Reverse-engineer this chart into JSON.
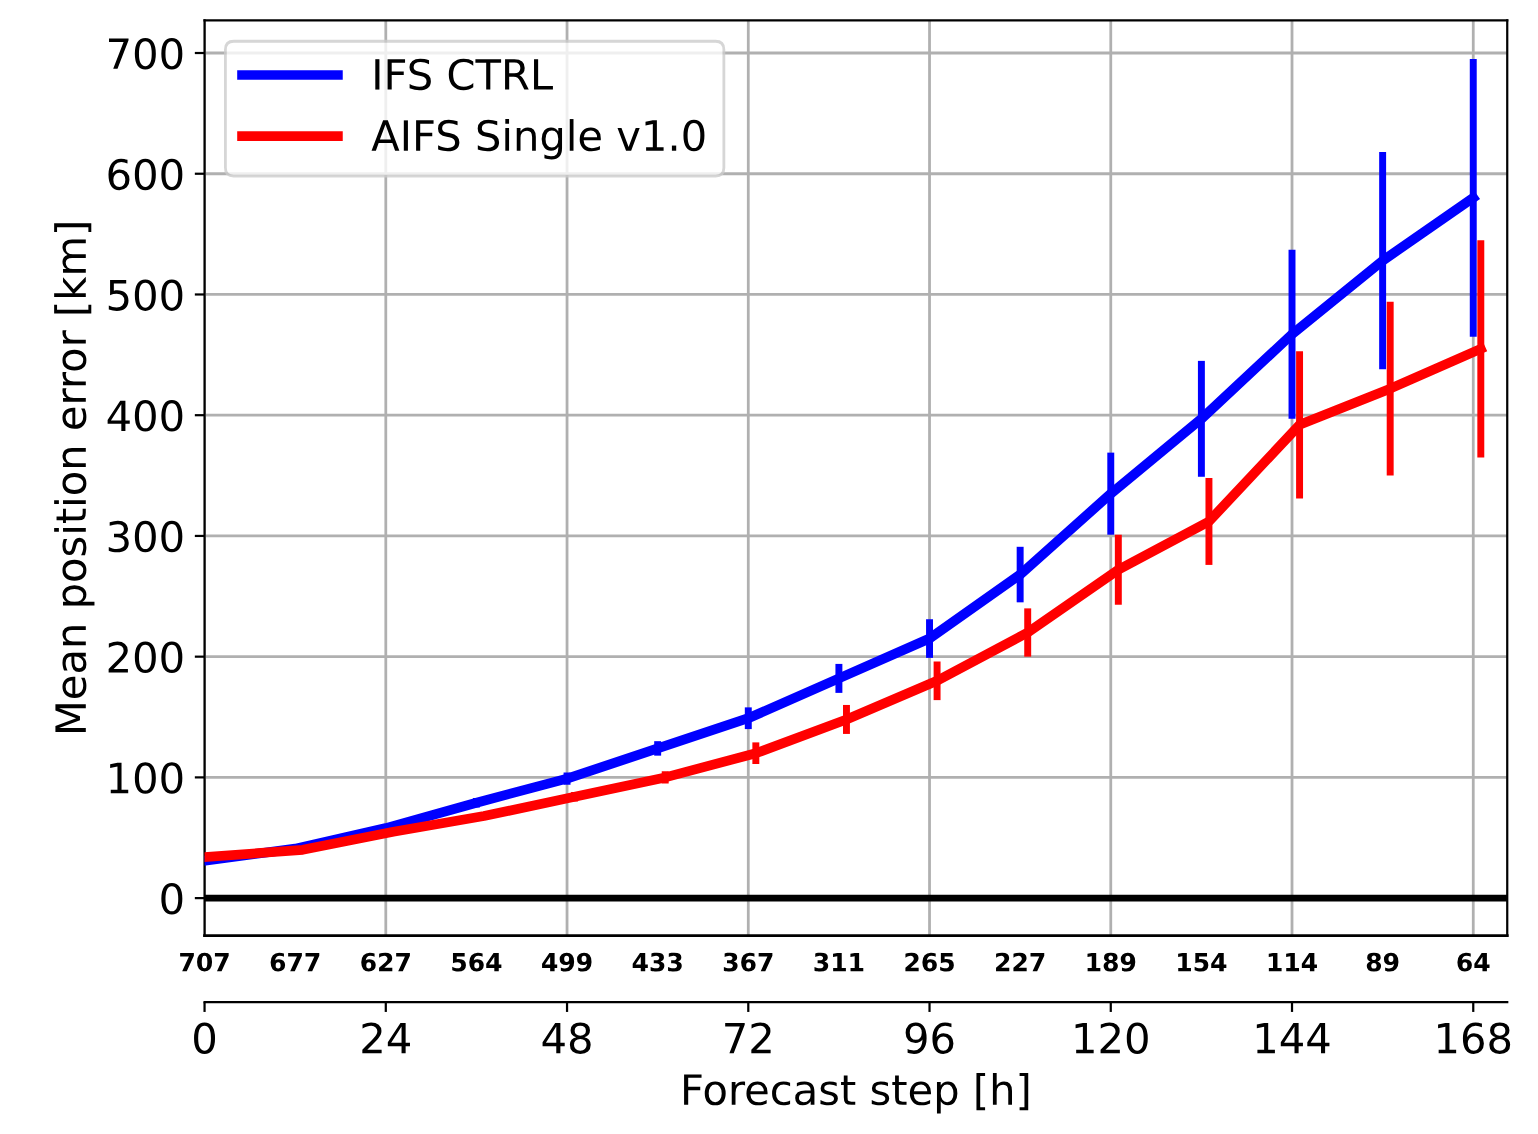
{
  "chart_data": {
    "type": "line",
    "xlabel": "Forecast step [h]",
    "ylabel": "Mean position error [km]",
    "xlim": [
      0,
      172.5
    ],
    "xticks": [
      0,
      24,
      48,
      72,
      96,
      120,
      144,
      168
    ],
    "annotations": [
      "707",
      "677",
      "627",
      "564",
      "499",
      "433",
      "367",
      "311",
      "265",
      "227",
      "189",
      "154",
      "114",
      "89",
      "64"
    ],
    "ylim": [
      -31,
      727
    ],
    "yticks": [
      0,
      100,
      200,
      300,
      400,
      500,
      600,
      700
    ],
    "grid": true,
    "legend": "top left",
    "ref_lines": [
      {
        "axis": "y",
        "value": 0,
        "color": "#000000"
      }
    ],
    "series": [
      {
        "name": "IFS CTRL",
        "color": "#0000ff",
        "x": [
          0,
          12,
          24,
          36,
          48,
          60,
          72,
          84,
          96,
          108,
          120,
          132,
          144,
          156,
          168
        ],
        "values": [
          31,
          41,
          58,
          79,
          99,
          124,
          149,
          182,
          215,
          268,
          335,
          397,
          467,
          528,
          580
        ],
        "errors": [
          null,
          null,
          null,
          4,
          5,
          6,
          9,
          12,
          16,
          23,
          34,
          48,
          70,
          90,
          115
        ]
      },
      {
        "name": "AIFS Single v1.0",
        "color": "#ff0000",
        "x": [
          0,
          13,
          25,
          37,
          49,
          61,
          73,
          85,
          97,
          109,
          121,
          133,
          145,
          157,
          169
        ],
        "values": [
          34,
          40,
          55,
          68,
          84,
          100,
          120,
          148,
          180,
          220,
          272,
          312,
          392,
          422,
          455
        ],
        "errors": [
          null,
          null,
          null,
          3,
          4,
          5,
          9,
          12,
          16,
          20,
          29,
          36,
          61,
          72,
          90
        ]
      }
    ]
  }
}
